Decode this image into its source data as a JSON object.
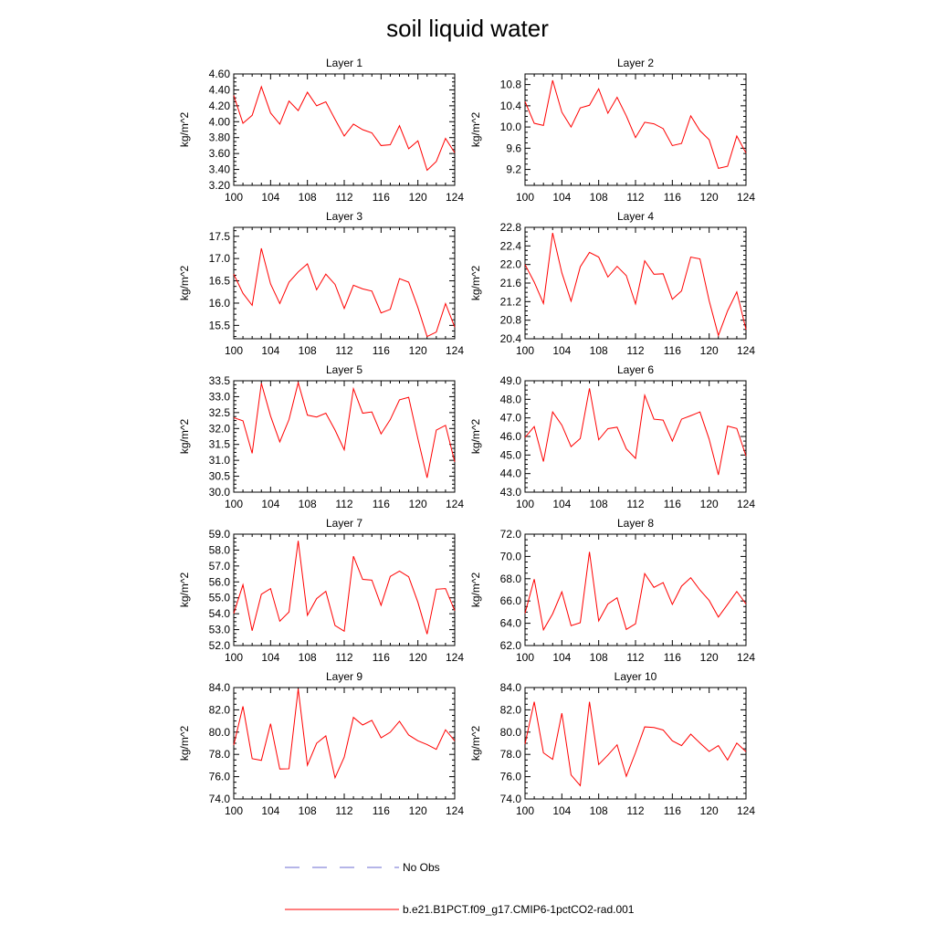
{
  "page": {
    "title": "soil liquid water"
  },
  "chart_data": {
    "type": "line",
    "title": "soil liquid water",
    "grid": false,
    "legend": {
      "placement": "bottom",
      "entries": [
        {
          "label": "No Obs",
          "style": "dashed",
          "color": "#6b6bd0"
        },
        {
          "label": "b.e21.B1PCT.f09_g17.CMIP6-1pctCO2-rad.001",
          "style": "solid",
          "color": "#ff0000"
        }
      ]
    },
    "x": [
      100,
      101,
      102,
      103,
      104,
      105,
      106,
      107,
      108,
      109,
      110,
      111,
      112,
      113,
      114,
      115,
      116,
      117,
      118,
      119,
      120,
      121,
      122,
      123,
      124
    ],
    "panels": [
      {
        "title": "Layer 1",
        "ylabel": "kg/m^2",
        "xlim": [
          100,
          124
        ],
        "ylim": [
          3.2,
          4.6
        ],
        "xticks": [
          "100",
          "104",
          "108",
          "112",
          "116",
          "120",
          "124"
        ],
        "yticks": [
          "3.20",
          "3.40",
          "3.60",
          "3.80",
          "4.00",
          "4.20",
          "4.40",
          "4.60"
        ],
        "series": [
          {
            "name": "b.e21.B1PCT.f09_g17.CMIP6-1pctCO2-rad.001",
            "color": "#ff0000",
            "values": [
              4.33,
              3.98,
              4.08,
              4.44,
              4.11,
              3.97,
              4.26,
              4.14,
              4.37,
              4.2,
              4.25,
              4.03,
              3.82,
              3.97,
              3.9,
              3.86,
              3.7,
              3.71,
              3.95,
              3.66,
              3.76,
              3.39,
              3.5,
              3.79,
              3.61
            ]
          }
        ]
      },
      {
        "title": "Layer 2",
        "ylabel": "kg/m^2",
        "xlim": [
          100,
          124
        ],
        "ylim": [
          8.9,
          11.0
        ],
        "xticks": [
          "100",
          "104",
          "108",
          "112",
          "116",
          "120",
          "124"
        ],
        "yticks": [
          "9.2",
          "9.6",
          "10.0",
          "10.4",
          "10.8"
        ],
        "series": [
          {
            "name": "b.e21.B1PCT.f09_g17.CMIP6-1pctCO2-rad.001",
            "color": "#ff0000",
            "values": [
              10.48,
              10.07,
              10.03,
              10.88,
              10.28,
              10.0,
              10.36,
              10.41,
              10.72,
              10.26,
              10.56,
              10.21,
              9.8,
              10.09,
              10.06,
              9.97,
              9.65,
              9.69,
              10.21,
              9.93,
              9.76,
              9.22,
              9.26,
              9.83,
              9.51
            ]
          }
        ]
      },
      {
        "title": "Layer 3",
        "ylabel": "kg/m^2",
        "xlim": [
          100,
          124
        ],
        "ylim": [
          15.2,
          17.7
        ],
        "xticks": [
          "100",
          "104",
          "108",
          "112",
          "116",
          "120",
          "124"
        ],
        "yticks": [
          "15.5",
          "16.0",
          "16.5",
          "17.0",
          "17.5"
        ],
        "series": [
          {
            "name": "b.e21.B1PCT.f09_g17.CMIP6-1pctCO2-rad.001",
            "color": "#ff0000",
            "values": [
              16.65,
              16.22,
              15.95,
              17.23,
              16.43,
              15.99,
              16.47,
              16.7,
              16.88,
              16.3,
              16.65,
              16.42,
              15.88,
              16.4,
              16.32,
              16.27,
              15.78,
              15.86,
              16.55,
              16.47,
              15.9,
              15.25,
              15.35,
              15.99,
              15.46
            ]
          }
        ]
      },
      {
        "title": "Layer 4",
        "ylabel": "kg/m^2",
        "xlim": [
          100,
          124
        ],
        "ylim": [
          20.4,
          22.8
        ],
        "xticks": [
          "100",
          "104",
          "108",
          "112",
          "116",
          "120",
          "124"
        ],
        "yticks": [
          "20.4",
          "20.8",
          "21.2",
          "21.6",
          "22.0",
          "22.4",
          "22.8"
        ],
        "series": [
          {
            "name": "b.e21.B1PCT.f09_g17.CMIP6-1pctCO2-rad.001",
            "color": "#ff0000",
            "values": [
              22.0,
              21.62,
              21.16,
              22.68,
              21.82,
              21.21,
              21.95,
              22.26,
              22.16,
              21.73,
              21.96,
              21.76,
              21.15,
              22.08,
              21.79,
              21.8,
              21.25,
              21.43,
              22.16,
              22.12,
              21.22,
              20.47,
              21.0,
              21.41,
              20.6
            ]
          }
        ]
      },
      {
        "title": "Layer 5",
        "ylabel": "kg/m^2",
        "xlim": [
          100,
          124
        ],
        "ylim": [
          30.0,
          33.5
        ],
        "xticks": [
          "100",
          "104",
          "108",
          "112",
          "116",
          "120",
          "124"
        ],
        "yticks": [
          "30.0",
          "30.5",
          "31.0",
          "31.5",
          "32.0",
          "32.5",
          "33.0",
          "33.5"
        ],
        "series": [
          {
            "name": "b.e21.B1PCT.f09_g17.CMIP6-1pctCO2-rad.001",
            "color": "#ff0000",
            "values": [
              32.34,
              32.24,
              31.22,
              33.42,
              32.39,
              31.58,
              32.28,
              33.44,
              32.42,
              32.36,
              32.48,
              31.95,
              31.33,
              33.25,
              32.48,
              32.52,
              31.83,
              32.28,
              32.9,
              32.98,
              31.68,
              30.45,
              31.95,
              32.1,
              30.95
            ]
          }
        ]
      },
      {
        "title": "Layer 6",
        "ylabel": "kg/m^2",
        "xlim": [
          100,
          124
        ],
        "ylim": [
          43.0,
          49.0
        ],
        "xticks": [
          "100",
          "104",
          "108",
          "112",
          "116",
          "120",
          "124"
        ],
        "yticks": [
          "43.0",
          "44.0",
          "45.0",
          "46.0",
          "47.0",
          "48.0",
          "49.0"
        ],
        "series": [
          {
            "name": "b.e21.B1PCT.f09_g17.CMIP6-1pctCO2-rad.001",
            "color": "#ff0000",
            "values": [
              45.95,
              46.53,
              44.65,
              47.32,
              46.61,
              45.45,
              45.89,
              48.59,
              45.82,
              46.42,
              46.5,
              45.33,
              44.82,
              48.22,
              46.93,
              46.88,
              45.75,
              46.93,
              47.12,
              47.32,
              45.85,
              43.93,
              46.56,
              46.43,
              44.95
            ]
          }
        ]
      },
      {
        "title": "Layer 7",
        "ylabel": "kg/m^2",
        "xlim": [
          100,
          124
        ],
        "ylim": [
          52.0,
          59.0
        ],
        "xticks": [
          "100",
          "104",
          "108",
          "112",
          "116",
          "120",
          "124"
        ],
        "yticks": [
          "52.0",
          "53.0",
          "54.0",
          "55.0",
          "56.0",
          "57.0",
          "58.0",
          "59.0"
        ],
        "series": [
          {
            "name": "b.e21.B1PCT.f09_g17.CMIP6-1pctCO2-rad.001",
            "color": "#ff0000",
            "values": [
              54.02,
              55.82,
              52.93,
              55.22,
              55.58,
              53.53,
              54.11,
              58.58,
              53.9,
              54.95,
              55.41,
              53.26,
              52.9,
              57.61,
              56.16,
              56.11,
              54.53,
              56.34,
              56.68,
              56.32,
              54.72,
              52.72,
              55.54,
              55.58,
              54.19
            ]
          }
        ]
      },
      {
        "title": "Layer 8",
        "ylabel": "kg/m^2",
        "xlim": [
          100,
          124
        ],
        "ylim": [
          62.0,
          72.0
        ],
        "xticks": [
          "100",
          "104",
          "108",
          "112",
          "116",
          "120",
          "124"
        ],
        "yticks": [
          "62.0",
          "64.0",
          "66.0",
          "68.0",
          "70.0",
          "72.0"
        ],
        "series": [
          {
            "name": "b.e21.B1PCT.f09_g17.CMIP6-1pctCO2-rad.001",
            "color": "#ff0000",
            "values": [
              64.9,
              67.96,
              63.41,
              64.85,
              66.82,
              63.78,
              64.05,
              70.41,
              64.21,
              65.73,
              66.29,
              63.45,
              63.95,
              68.46,
              67.22,
              67.65,
              65.69,
              67.33,
              68.09,
              66.98,
              66.05,
              64.56,
              65.69,
              66.85,
              65.73
            ]
          }
        ]
      },
      {
        "title": "Layer 9",
        "ylabel": "kg/m^2",
        "xlim": [
          100,
          124
        ],
        "ylim": [
          74.0,
          84.0
        ],
        "xticks": [
          "100",
          "104",
          "108",
          "112",
          "116",
          "120",
          "124"
        ],
        "yticks": [
          "74.0",
          "76.0",
          "78.0",
          "80.0",
          "82.0",
          "84.0"
        ],
        "series": [
          {
            "name": "b.e21.B1PCT.f09_g17.CMIP6-1pctCO2-rad.001",
            "color": "#ff0000",
            "values": [
              78.85,
              82.31,
              77.62,
              77.46,
              80.75,
              76.69,
              76.71,
              83.88,
              77.03,
              79.0,
              79.66,
              75.9,
              77.75,
              81.32,
              80.64,
              81.06,
              79.49,
              79.99,
              80.97,
              79.74,
              79.22,
              78.88,
              78.45,
              80.21,
              79.21
            ]
          }
        ]
      },
      {
        "title": "Layer 10",
        "ylabel": "kg/m^2",
        "xlim": [
          100,
          124
        ],
        "ylim": [
          74.0,
          84.0
        ],
        "xticks": [
          "100",
          "104",
          "108",
          "112",
          "116",
          "120",
          "124"
        ],
        "yticks": [
          "74.0",
          "76.0",
          "78.0",
          "80.0",
          "82.0",
          "84.0"
        ],
        "series": [
          {
            "name": "b.e21.B1PCT.f09_g17.CMIP6-1pctCO2-rad.001",
            "color": "#ff0000",
            "values": [
              78.94,
              82.72,
              78.14,
              77.55,
              81.7,
              76.16,
              75.19,
              82.72,
              77.09,
              77.94,
              78.86,
              76.03,
              78.16,
              80.47,
              80.41,
              80.19,
              79.22,
              78.79,
              79.82,
              79.02,
              78.26,
              78.79,
              77.49,
              79.02,
              78.24
            ]
          }
        ]
      }
    ]
  }
}
